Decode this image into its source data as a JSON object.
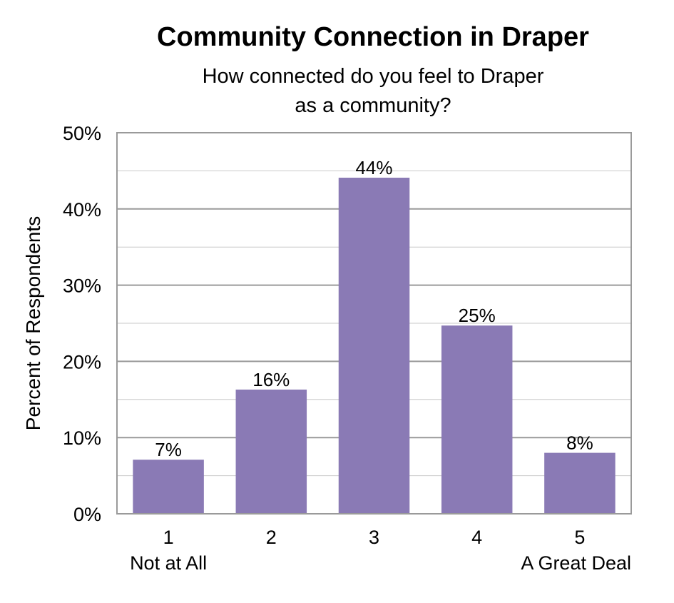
{
  "chart_data": {
    "type": "bar",
    "title": "Community Connection in Draper",
    "subtitle_lines": [
      "How connected do you feel to Draper",
      "as a community?"
    ],
    "ylabel": "Percent of Respondents",
    "xlabel": "",
    "categories": [
      "1",
      "2",
      "3",
      "4",
      "5"
    ],
    "category_sublabels": [
      "Not at All",
      "",
      "",
      "",
      "A Great Deal"
    ],
    "values": [
      7,
      16,
      44,
      25,
      8
    ],
    "bar_values": [
      7.1,
      16.3,
      44.1,
      24.7,
      8.0
    ],
    "data_labels": [
      "7%",
      "16%",
      "44%",
      "25%",
      "8%"
    ],
    "ylim": [
      0,
      50
    ],
    "yticks": [
      0,
      10,
      20,
      30,
      40,
      50
    ],
    "ytick_labels": [
      "0%",
      "10%",
      "20%",
      "30%",
      "40%",
      "50%"
    ],
    "minor_gridlines_step": 5,
    "grid": true,
    "legend": "none"
  },
  "colors": {
    "bar": "#8A7AB5",
    "plot_border": "#9A9A9A",
    "grid_major": "#9A9A9A",
    "grid_minor": "#C8C8C8",
    "text": "#000000"
  }
}
